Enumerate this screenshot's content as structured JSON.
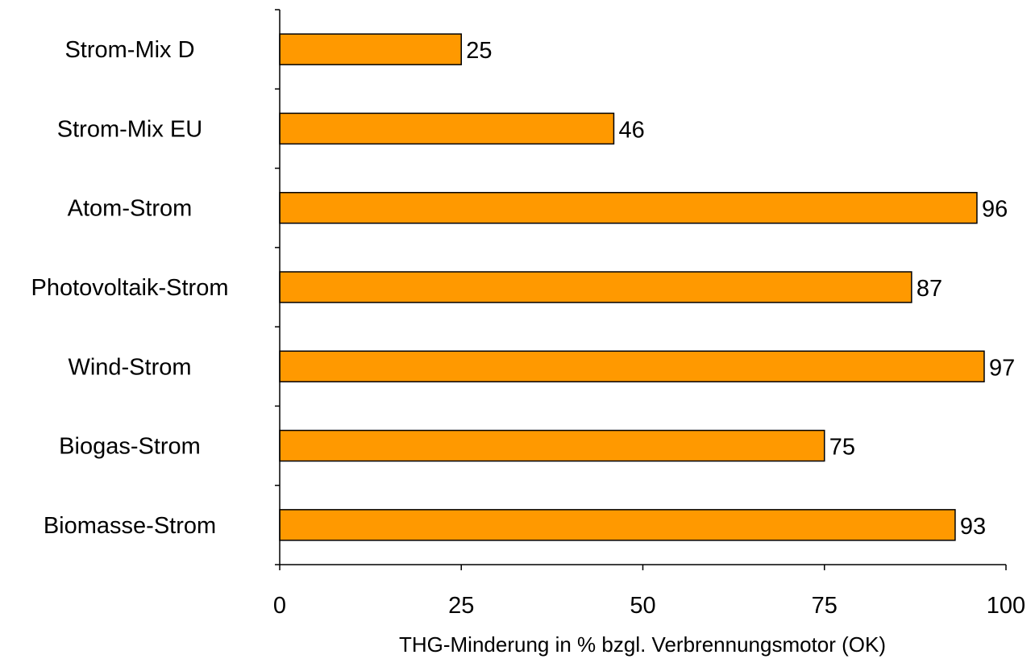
{
  "chart_data": {
    "type": "bar",
    "orientation": "horizontal",
    "categories": [
      "Strom-Mix D",
      "Strom-Mix EU",
      "Atom-Strom",
      "Photovoltaik-Strom",
      "Wind-Strom",
      "Biogas-Strom",
      "Biomasse-Strom"
    ],
    "values": [
      25,
      46,
      96,
      87,
      97,
      75,
      93
    ],
    "data_labels": [
      "25",
      "46",
      "96",
      "87",
      "97",
      "75",
      "93"
    ],
    "xlabel": "THG-Minderung in % bzgl. Verbrennungsmotor (OK)",
    "ylabel": "",
    "xlim": [
      0,
      100
    ],
    "x_ticks": [
      0,
      25,
      50,
      75,
      100
    ],
    "x_tick_labels": [
      "0",
      "25",
      "50",
      "75",
      "100"
    ],
    "grid": false,
    "legend": "none",
    "colors": {
      "bar_fill": "#FF9900",
      "bar_stroke": "#000000",
      "axis": "#000000"
    }
  }
}
